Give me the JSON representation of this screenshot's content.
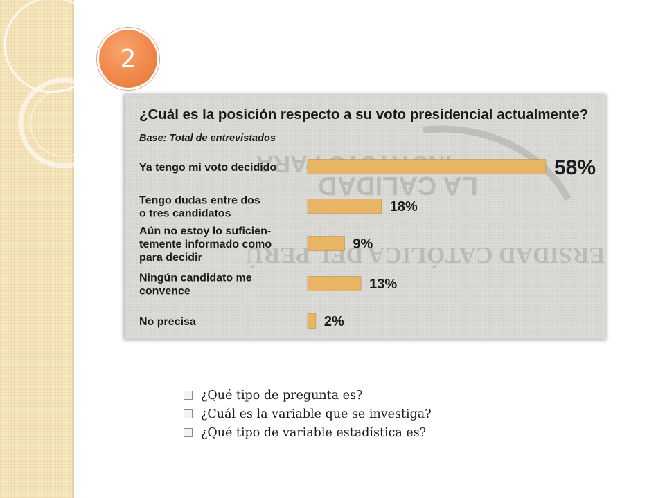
{
  "slide": {
    "number": "2"
  },
  "watermark": {
    "lines": [
      "INSTITUTO PARA",
      "LA CALIDAD",
      "UNIVERSIDAD CATÓLICA DEL PERÚ"
    ]
  },
  "chart_data": {
    "type": "bar",
    "orientation": "horizontal",
    "title": "¿Cuál es la posición respecto a su voto presidencial actualmente?",
    "subtitle": "Base: Total de entrevistados",
    "categories": [
      [
        "Ya tengo mi voto decidido"
      ],
      [
        "Tengo dudas entre dos",
        "o tres candidatos"
      ],
      [
        "Aún no estoy lo suficien-",
        "temente informado como",
        "para decidir"
      ],
      [
        "Ningún candidato me",
        "convence"
      ],
      [
        "No precisa"
      ]
    ],
    "values": [
      58,
      18,
      9,
      13,
      2
    ],
    "value_labels": [
      "58%",
      "18%",
      "9%",
      "13%",
      "2%"
    ],
    "unit": "%",
    "xlim": [
      0,
      58
    ],
    "bar_color": "#e8b564",
    "grid": false,
    "legend": "none"
  },
  "questions": [
    "¿Qué tipo de pregunta es?",
    "¿Cuál es la variable que se investiga?",
    "¿Qué tipo de variable estadística es?"
  ]
}
